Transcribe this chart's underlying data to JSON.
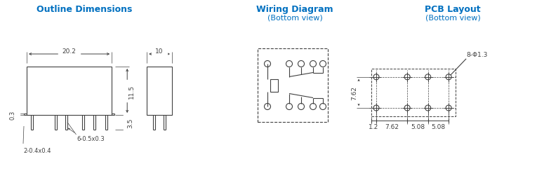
{
  "title_color": "#0070C0",
  "bg_color": "#ffffff",
  "line_color": "#404040",
  "section1_title": "Outline Dimensions",
  "section2_title": "Wiring Diagram",
  "section2_subtitle": "(Bottom view)",
  "section3_title": "PCB Layout",
  "section3_subtitle": "(Bottom view)",
  "dim_labels": {
    "width": "20.2",
    "height": "11.5",
    "pin_ext": "3.5",
    "flange": "0.3",
    "pin_spec": "6-0.5x0.3",
    "side_spec": "2-0.4x0.4",
    "side_w": "10",
    "pcb_margin": "1.2",
    "pcb_col1": "7.62",
    "pcb_col2": "5.08",
    "pcb_col3": "5.08",
    "pcb_row": "7.62",
    "hole_spec": "8-Φ1.3"
  }
}
